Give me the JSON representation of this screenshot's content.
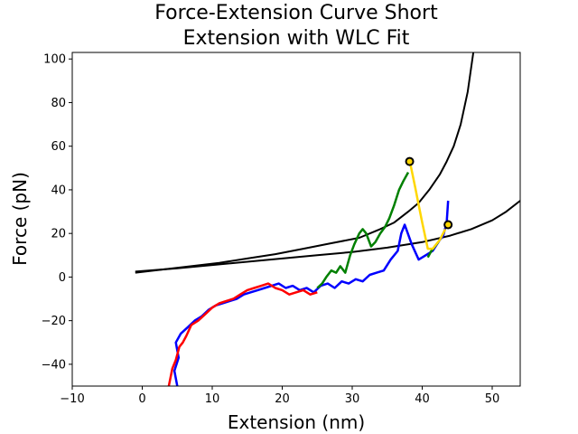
{
  "chart_data": {
    "type": "line",
    "title": [
      "Force-Extension Curve Short",
      "Extension with WLC Fit"
    ],
    "xlabel": "Extension (nm)",
    "ylabel": "Force (pN)",
    "xlim": [
      -10,
      54
    ],
    "ylim": [
      -50,
      103
    ],
    "xticks": [
      -10,
      0,
      10,
      20,
      30,
      40,
      50
    ],
    "xtick_labels": [
      "−10",
      "0",
      "10",
      "20",
      "30",
      "40",
      "50"
    ],
    "yticks": [
      -40,
      -20,
      0,
      20,
      40,
      60,
      80,
      100
    ],
    "ytick_labels": [
      "−40",
      "−20",
      "0",
      "20",
      "40",
      "60",
      "80",
      "100"
    ],
    "grid": false,
    "series": [
      {
        "color": "#0000ff",
        "x": [
          5.0,
          4.6,
          5.2,
          4.8,
          5.5,
          6.5,
          7.5,
          8.5,
          9.5,
          10.5,
          11.5,
          12.5,
          13.5,
          14.5,
          15.5,
          16.5,
          17.5,
          18.5,
          19.5,
          20.5,
          21.5,
          22.5,
          23.5,
          24.5,
          25.5,
          26.5,
          27.5,
          28.5,
          29.5,
          30.5,
          31.5,
          32.5,
          33.5,
          34.5,
          35.5,
          36.5,
          37.0,
          37.5,
          38.5,
          39.5,
          40.5,
          41.5,
          42.5,
          43.0,
          43.5,
          43.7
        ],
        "y": [
          -50,
          -43,
          -37,
          -30,
          -26,
          -23,
          -20,
          -18,
          -15,
          -13,
          -12,
          -11,
          -10,
          -8,
          -7,
          -6,
          -5,
          -4,
          -3,
          -5,
          -4,
          -6,
          -5,
          -7,
          -4,
          -3,
          -5,
          -2,
          -3,
          -1,
          -2,
          1,
          2,
          3,
          8,
          12,
          20,
          24,
          15,
          8,
          10,
          12,
          17,
          19,
          25,
          35
        ]
      },
      {
        "color": "#ff0000",
        "x": [
          3.8,
          4.3,
          4.8,
          5.3,
          5.8,
          6.3,
          7.0,
          8.0,
          9.0,
          10.0,
          11.0,
          12.0,
          13.0,
          14.0,
          15.0,
          16.0,
          17.0,
          18.0,
          19.0,
          20.0,
          21.0,
          22.0,
          23.0,
          24.0,
          25.0
        ],
        "y": [
          -50,
          -42,
          -38,
          -32,
          -30,
          -27,
          -22,
          -20,
          -17,
          -14,
          -12,
          -11,
          -10,
          -8,
          -6,
          -5,
          -4,
          -3,
          -5,
          -6,
          -8,
          -7,
          -6,
          -8,
          -7
        ]
      },
      {
        "color": "#008000",
        "x": [
          25.0,
          25.7,
          26.3,
          27.0,
          27.7,
          28.3,
          29.0,
          29.7,
          30.3,
          31.0,
          31.5,
          32.0,
          32.7,
          33.3,
          34.0,
          34.7,
          35.3,
          36.0,
          36.7,
          37.3,
          38.0
        ],
        "y": [
          -5,
          -3,
          0,
          3,
          2,
          5,
          2,
          10,
          15,
          20,
          22,
          20,
          14,
          16,
          20,
          23,
          27,
          33,
          40,
          44,
          48
        ]
      },
      {
        "color": "#008000",
        "x": [
          40.8,
          41.3,
          41.8,
          42.3
        ],
        "y": [
          9,
          12,
          14,
          16
        ]
      },
      {
        "color": "#ffd700",
        "x": [
          38.3,
          39.0,
          39.5,
          40.0,
          40.8,
          41.5,
          42.5,
          43.3
        ],
        "y": [
          52,
          41,
          33,
          25,
          13,
          13,
          17,
          22
        ]
      }
    ],
    "wlc_fits": [
      {
        "color": "#000000",
        "x": [
          -1.0,
          3,
          7,
          11,
          15,
          19,
          23,
          27,
          31,
          34,
          36,
          38,
          39.5,
          41,
          42.5,
          43.5,
          44.5,
          45.5,
          46.5,
          47.3
        ],
        "y": [
          2,
          3.5,
          5,
          6.5,
          8.5,
          10.5,
          13,
          15.5,
          18,
          22,
          25,
          30,
          34,
          40,
          47,
          53,
          60,
          70,
          85,
          103
        ]
      },
      {
        "color": "#000000",
        "x": [
          -1.0,
          5,
          10,
          15,
          20,
          25,
          30,
          35,
          40,
          44,
          47,
          50,
          52,
          54
        ],
        "y": [
          2.5,
          4,
          5.5,
          7,
          8.5,
          10,
          11.5,
          13.5,
          16,
          19,
          22,
          26,
          30,
          35
        ]
      }
    ],
    "markers": [
      {
        "color": "#000000",
        "x": 38.2,
        "y": 53
      },
      {
        "color": "#000000",
        "x": 43.7,
        "y": 24
      }
    ]
  }
}
